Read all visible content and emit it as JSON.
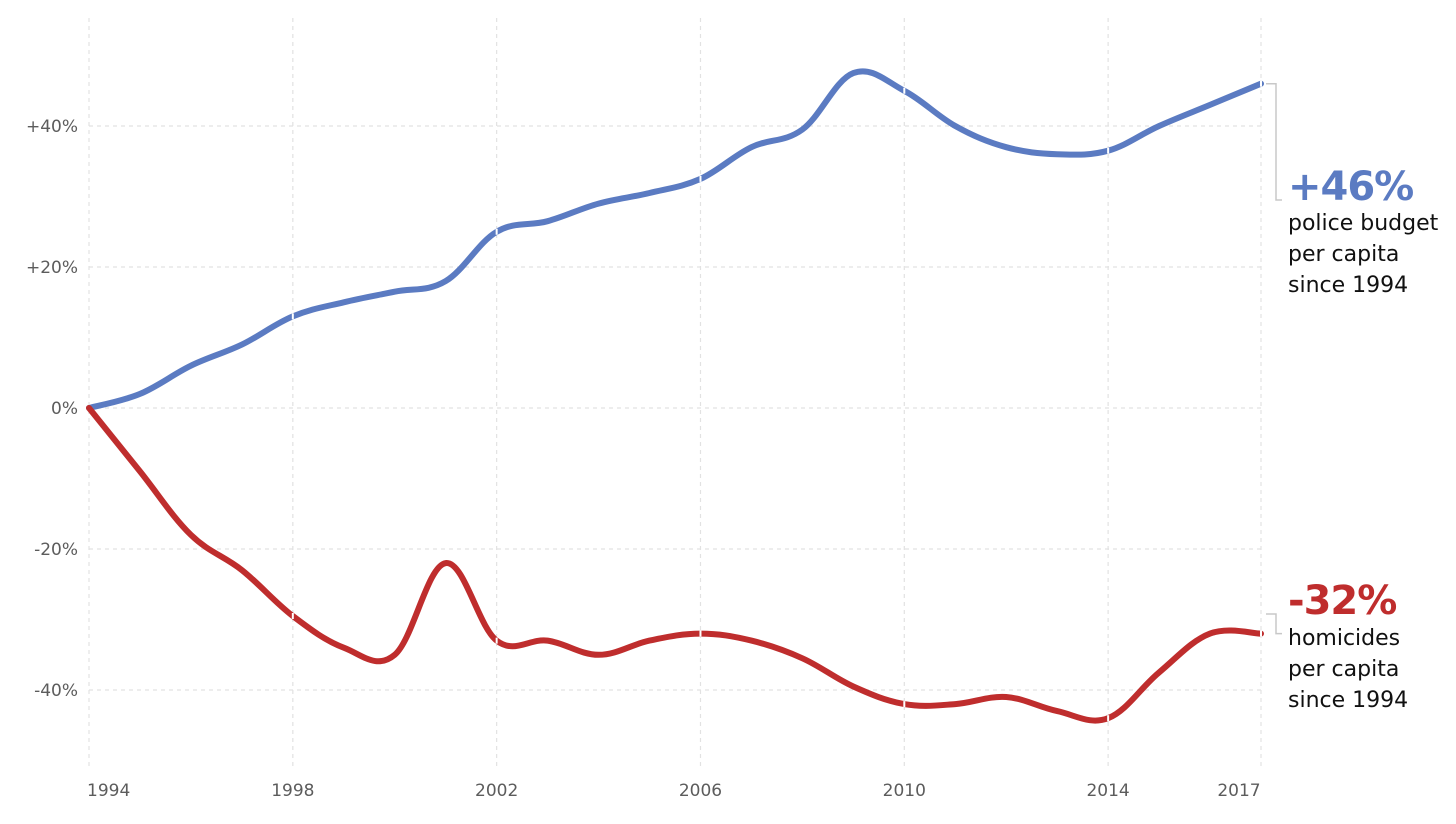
{
  "chart_data": {
    "type": "line",
    "title": "",
    "xlabel": "",
    "ylabel": "",
    "x": [
      1994,
      1995,
      1996,
      1997,
      1998,
      1999,
      2000,
      2001,
      2002,
      2003,
      2004,
      2005,
      2006,
      2007,
      2008,
      2009,
      2010,
      2011,
      2012,
      2013,
      2014,
      2015,
      2016,
      2017
    ],
    "xlim": [
      1994,
      2017
    ],
    "ylim": [
      -50,
      55
    ],
    "x_ticks": [
      {
        "value": 1994,
        "label": "1994"
      },
      {
        "value": 1998,
        "label": "1998"
      },
      {
        "value": 2002,
        "label": "2002"
      },
      {
        "value": 2006,
        "label": "2006"
      },
      {
        "value": 2010,
        "label": "2010"
      },
      {
        "value": 2014,
        "label": "2014"
      },
      {
        "value": 2017,
        "label": "2017"
      }
    ],
    "y_ticks": [
      {
        "value": 40,
        "label": "+40%"
      },
      {
        "value": 20,
        "label": "+20%"
      },
      {
        "value": 0,
        "label": "0%"
      },
      {
        "value": -20,
        "label": "-20%"
      },
      {
        "value": -40,
        "label": "-40%"
      }
    ],
    "grid": true,
    "series": [
      {
        "color": "#5b7bc2",
        "values": [
          0,
          2,
          6,
          9,
          13,
          15,
          16.5,
          18,
          25,
          26.5,
          29,
          30.5,
          32.5,
          37,
          39.5,
          47.5,
          45,
          40,
          37,
          36,
          36.5,
          40,
          43,
          46
        ]
      },
      {
        "color": "#bf2d2d",
        "values": [
          0,
          -9,
          -18,
          -23,
          -29.5,
          -34,
          -35,
          -22,
          -33,
          -33,
          -35,
          -33,
          -32,
          -33,
          -35.5,
          -39.5,
          -42,
          -42,
          -41,
          -43,
          -44,
          -37.5,
          -32,
          -32
        ]
      }
    ],
    "annotations": [
      {
        "series": 0,
        "value": "+46%",
        "lines": [
          "police budget",
          "per capita",
          "since 1994"
        ],
        "color": "#5b7bc2"
      },
      {
        "series": 1,
        "value": "-32%",
        "lines": [
          "homicides",
          "per capita",
          "since 1994"
        ],
        "color": "#bf2d2d"
      }
    ]
  }
}
